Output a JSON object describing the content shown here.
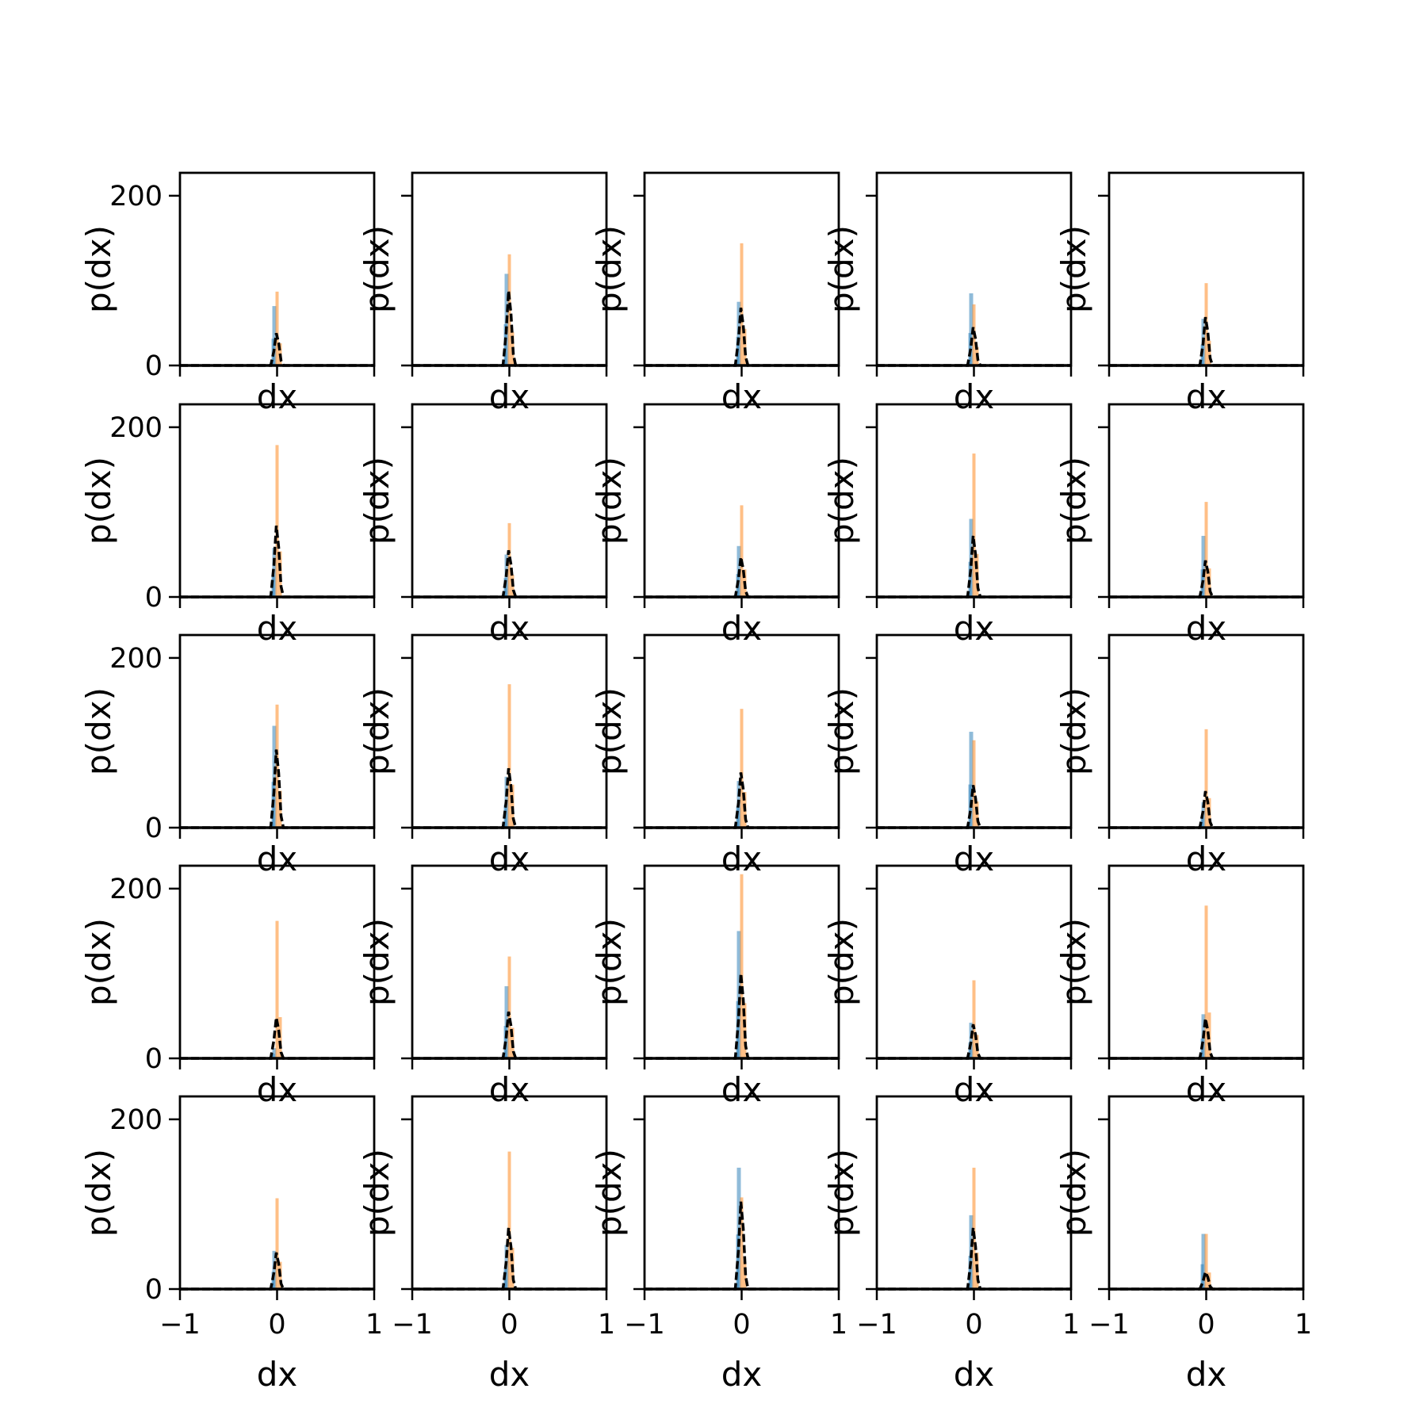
{
  "chart_data": {
    "type": "histogram-grid",
    "rows": 5,
    "cols": 5,
    "xlabel": "dx",
    "ylabel": "p(dx)",
    "xlim": [
      -1,
      1
    ],
    "ylim": [
      0,
      227
    ],
    "xticks": [
      -1,
      0,
      1
    ],
    "xtick_labels": [
      "−1",
      "0",
      "1"
    ],
    "yticks": [
      0,
      200
    ],
    "ytick_labels": [
      "0",
      "200"
    ],
    "sharey": true,
    "colors": {
      "blue": "#1f77b4",
      "orange": "#ff7f0e",
      "black_dashed": "#000000"
    },
    "panels": [
      {
        "orange_peak": 87,
        "blue_peak": 70,
        "black_peak": 38
      },
      {
        "orange_peak": 131,
        "blue_peak": 108,
        "black_peak": 88
      },
      {
        "orange_peak": 144,
        "blue_peak": 75,
        "black_peak": 68
      },
      {
        "orange_peak": 72,
        "blue_peak": 85,
        "black_peak": 45
      },
      {
        "orange_peak": 97,
        "blue_peak": 55,
        "black_peak": 57
      },
      {
        "orange_peak": 179,
        "blue_peak": 58,
        "black_peak": 84
      },
      {
        "orange_peak": 87,
        "blue_peak": 50,
        "black_peak": 55
      },
      {
        "orange_peak": 108,
        "blue_peak": 60,
        "black_peak": 47
      },
      {
        "orange_peak": 169,
        "blue_peak": 92,
        "black_peak": 72
      },
      {
        "orange_peak": 112,
        "blue_peak": 72,
        "black_peak": 43
      },
      {
        "orange_peak": 145,
        "blue_peak": 120,
        "black_peak": 92
      },
      {
        "orange_peak": 169,
        "blue_peak": 60,
        "black_peak": 70
      },
      {
        "orange_peak": 140,
        "blue_peak": 55,
        "black_peak": 65
      },
      {
        "orange_peak": 103,
        "blue_peak": 113,
        "black_peak": 50
      },
      {
        "orange_peak": 116,
        "blue_peak": 30,
        "black_peak": 43
      },
      {
        "orange_peak": 162,
        "blue_peak": 12,
        "black_peak": 48
      },
      {
        "orange_peak": 120,
        "blue_peak": 85,
        "black_peak": 55
      },
      {
        "orange_peak": 217,
        "blue_peak": 150,
        "black_peak": 100
      },
      {
        "orange_peak": 92,
        "blue_peak": 42,
        "black_peak": 40
      },
      {
        "orange_peak": 180,
        "blue_peak": 52,
        "black_peak": 47
      },
      {
        "orange_peak": 107,
        "blue_peak": 45,
        "black_peak": 43
      },
      {
        "orange_peak": 162,
        "blue_peak": 52,
        "black_peak": 72
      },
      {
        "orange_peak": 108,
        "blue_peak": 143,
        "black_peak": 103
      },
      {
        "orange_peak": 143,
        "blue_peak": 87,
        "black_peak": 72
      },
      {
        "orange_peak": 65,
        "blue_peak": 65,
        "black_peak": 20
      }
    ]
  }
}
